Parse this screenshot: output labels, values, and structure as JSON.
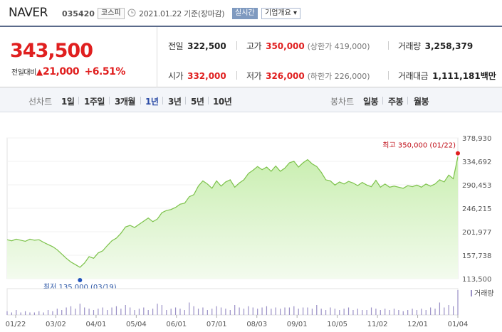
{
  "header": {
    "company": "NAVER",
    "code": "035420",
    "market": "코스피",
    "as_of": "2021.01.22 기준(장마감)",
    "live_label": "실시간",
    "profile_label": "기업개요 ▾"
  },
  "summary": {
    "price": "343,500",
    "change_label": "전일대비",
    "change_amount": "21,000",
    "change_pct": "+6.51%",
    "prev_close_label": "전일",
    "prev_close": "322,500",
    "high_label": "고가",
    "high": "350,000",
    "high_sub": "(상한가 419,000)",
    "volume_label": "거래량",
    "volume": "3,258,379",
    "open_label": "시가",
    "open": "332,000",
    "low_label": "저가",
    "low": "326,000",
    "low_sub": "(하한가 226,000)",
    "value_label": "거래대금",
    "value": "1,111,181",
    "value_unit": "백만"
  },
  "period_bar": {
    "line_label": "선차트",
    "periods": [
      "1일",
      "1주일",
      "3개월",
      "1년",
      "3년",
      "5년",
      "10년"
    ],
    "active_period": "1년",
    "candle_label": "봉차트",
    "candles": [
      "일봉",
      "주봉",
      "월봉"
    ]
  },
  "colors": {
    "price_up": "#e01f1f",
    "line": "#7cc24a",
    "fill_top": "#c9eeb0",
    "fill_bottom": "#f3fbee",
    "low_marker": "#2255bb",
    "active_tab": "#2a4aa5",
    "volume_bar": "#9a90c6"
  },
  "chart_data": {
    "type": "area",
    "title": "",
    "y_ticks": [
      "378,930",
      "334,692",
      "290,453",
      "246,215",
      "201,977",
      "157,738",
      "113,500"
    ],
    "ylim": [
      113500,
      378930
    ],
    "x_tick_labels": [
      "01/22",
      "03/02",
      "04/01",
      "05/04",
      "06/01",
      "07/01",
      "08/03",
      "09/01",
      "10/05",
      "11/02",
      "12/01",
      "01/04"
    ],
    "high_annotation": "최고 350,000 (01/22)",
    "low_annotation": "최저 135,000 (03/19)",
    "high_index": 99,
    "low_index": 16,
    "volume_legend": "거래량",
    "prices": [
      187000,
      185000,
      188000,
      186000,
      184000,
      188000,
      186000,
      187000,
      182000,
      178000,
      174000,
      168000,
      160000,
      152000,
      145000,
      140000,
      135000,
      143000,
      155000,
      152000,
      162000,
      166000,
      176000,
      185000,
      190000,
      199000,
      211000,
      214000,
      210000,
      216000,
      222000,
      228000,
      221000,
      226000,
      238000,
      242000,
      244000,
      248000,
      254000,
      256000,
      268000,
      272000,
      288000,
      298000,
      292000,
      284000,
      298000,
      288000,
      296000,
      300000,
      286000,
      294000,
      300000,
      312000,
      318000,
      325000,
      319000,
      324000,
      316000,
      326000,
      316000,
      322000,
      332000,
      335000,
      324000,
      332000,
      338000,
      330000,
      325000,
      314000,
      300000,
      298000,
      290000,
      296000,
      292000,
      297000,
      294000,
      289000,
      295000,
      290000,
      287000,
      299000,
      286000,
      292000,
      286000,
      288000,
      286000,
      284000,
      289000,
      287000,
      290000,
      286000,
      292000,
      288000,
      292000,
      300000,
      296000,
      309000,
      302000,
      343500
    ],
    "volumes": [
      3,
      2,
      4,
      2,
      3,
      2,
      2,
      3,
      2,
      4,
      3,
      5,
      4,
      6,
      7,
      5,
      9,
      6,
      5,
      4,
      5,
      6,
      4,
      6,
      7,
      5,
      8,
      6,
      4,
      5,
      6,
      4,
      5,
      9,
      8,
      4,
      5,
      6,
      5,
      4,
      10,
      7,
      5,
      6,
      4,
      5,
      7,
      6,
      5,
      4,
      8,
      6,
      5,
      7,
      6,
      5,
      6,
      7,
      5,
      6,
      5,
      6,
      6,
      7,
      5,
      6,
      6,
      5,
      8,
      5,
      4,
      6,
      5,
      4,
      5,
      6,
      4,
      5,
      4,
      4,
      6,
      5,
      4,
      5,
      4,
      5,
      4,
      3,
      4,
      5,
      4,
      5,
      4,
      6,
      5,
      10,
      6,
      8,
      7,
      20
    ]
  }
}
